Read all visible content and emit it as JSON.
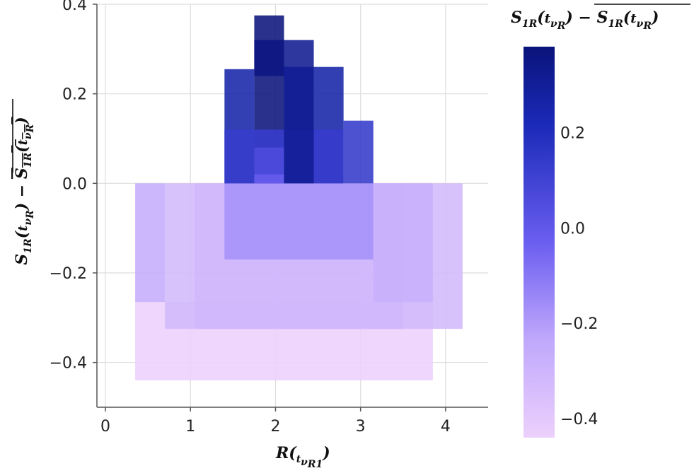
{
  "chart_data": {
    "type": "heatmap",
    "xlabel": "R(t_{ν_R1})",
    "ylabel": "S_1R(t_{ν_R}) − mean(S_1R(t_{ν_R}))",
    "colorbar_label": "S_1R(t_{ν_R}) − mean(S_1R(t_{ν_R}))",
    "xlim": [
      -0.1,
      4.5
    ],
    "ylim": [
      -0.5,
      0.4
    ],
    "x_ticks": [
      "0",
      "1",
      "2",
      "3",
      "4"
    ],
    "y_ticks": [
      "−0.4",
      "−0.2",
      "0.0",
      "0.2",
      "0.4"
    ],
    "colorbar_ticks": [
      "−0.4",
      "−0.2",
      "0.0",
      "0.2"
    ],
    "color_range": [
      -0.44,
      0.38
    ],
    "grid": true,
    "colors": {
      "low": "#ecd0fc",
      "mid_low": "#c0a8fc",
      "mid": "#6a5ef0",
      "high": "#1b2ab8",
      "max": "#0a137a"
    },
    "cells": [
      {
        "x0": 0.35,
        "x1": 3.85,
        "y0": -0.44,
        "y1": -0.265,
        "value": -0.44
      },
      {
        "x0": 0.35,
        "x1": 0.7,
        "y0": -0.265,
        "y1": 0.0,
        "value": -0.26
      },
      {
        "x0": 0.7,
        "x1": 4.2,
        "y0": -0.325,
        "y1": 0.0,
        "value": -0.32
      },
      {
        "x0": 1.05,
        "x1": 3.5,
        "y0": -0.325,
        "y1": 0.0,
        "value": -0.31
      },
      {
        "x0": 1.4,
        "x1": 3.15,
        "y0": -0.17,
        "y1": 0.0,
        "value": -0.17
      },
      {
        "x0": 3.15,
        "x1": 3.85,
        "y0": -0.265,
        "y1": 0.0,
        "value": -0.27
      },
      {
        "x0": 1.4,
        "x1": 1.75,
        "y0": 0.0,
        "y1": 0.255,
        "value": 0.255
      },
      {
        "x0": 1.75,
        "x1": 2.1,
        "y0": 0.0,
        "y1": 0.375,
        "value": 0.375
      },
      {
        "x0": 2.1,
        "x1": 2.45,
        "y0": 0.0,
        "y1": 0.32,
        "value": 0.32
      },
      {
        "x0": 2.45,
        "x1": 2.8,
        "y0": 0.0,
        "y1": 0.26,
        "value": 0.26
      },
      {
        "x0": 2.8,
        "x1": 3.15,
        "y0": 0.0,
        "y1": 0.14,
        "value": 0.14
      },
      {
        "x0": 1.4,
        "x1": 2.8,
        "y0": 0.0,
        "y1": 0.12,
        "value": 0.13
      },
      {
        "x0": 1.75,
        "x1": 2.1,
        "y0": 0.0,
        "y1": 0.08,
        "value": 0.06
      },
      {
        "x0": 1.75,
        "x1": 2.1,
        "y0": 0.0,
        "y1": 0.02,
        "value": -0.02
      },
      {
        "x0": 1.75,
        "x1": 2.1,
        "y0": 0.24,
        "y1": 0.32,
        "value": 0.36
      },
      {
        "x0": 2.1,
        "x1": 2.45,
        "y0": 0.0,
        "y1": 0.26,
        "value": 0.31
      }
    ]
  }
}
